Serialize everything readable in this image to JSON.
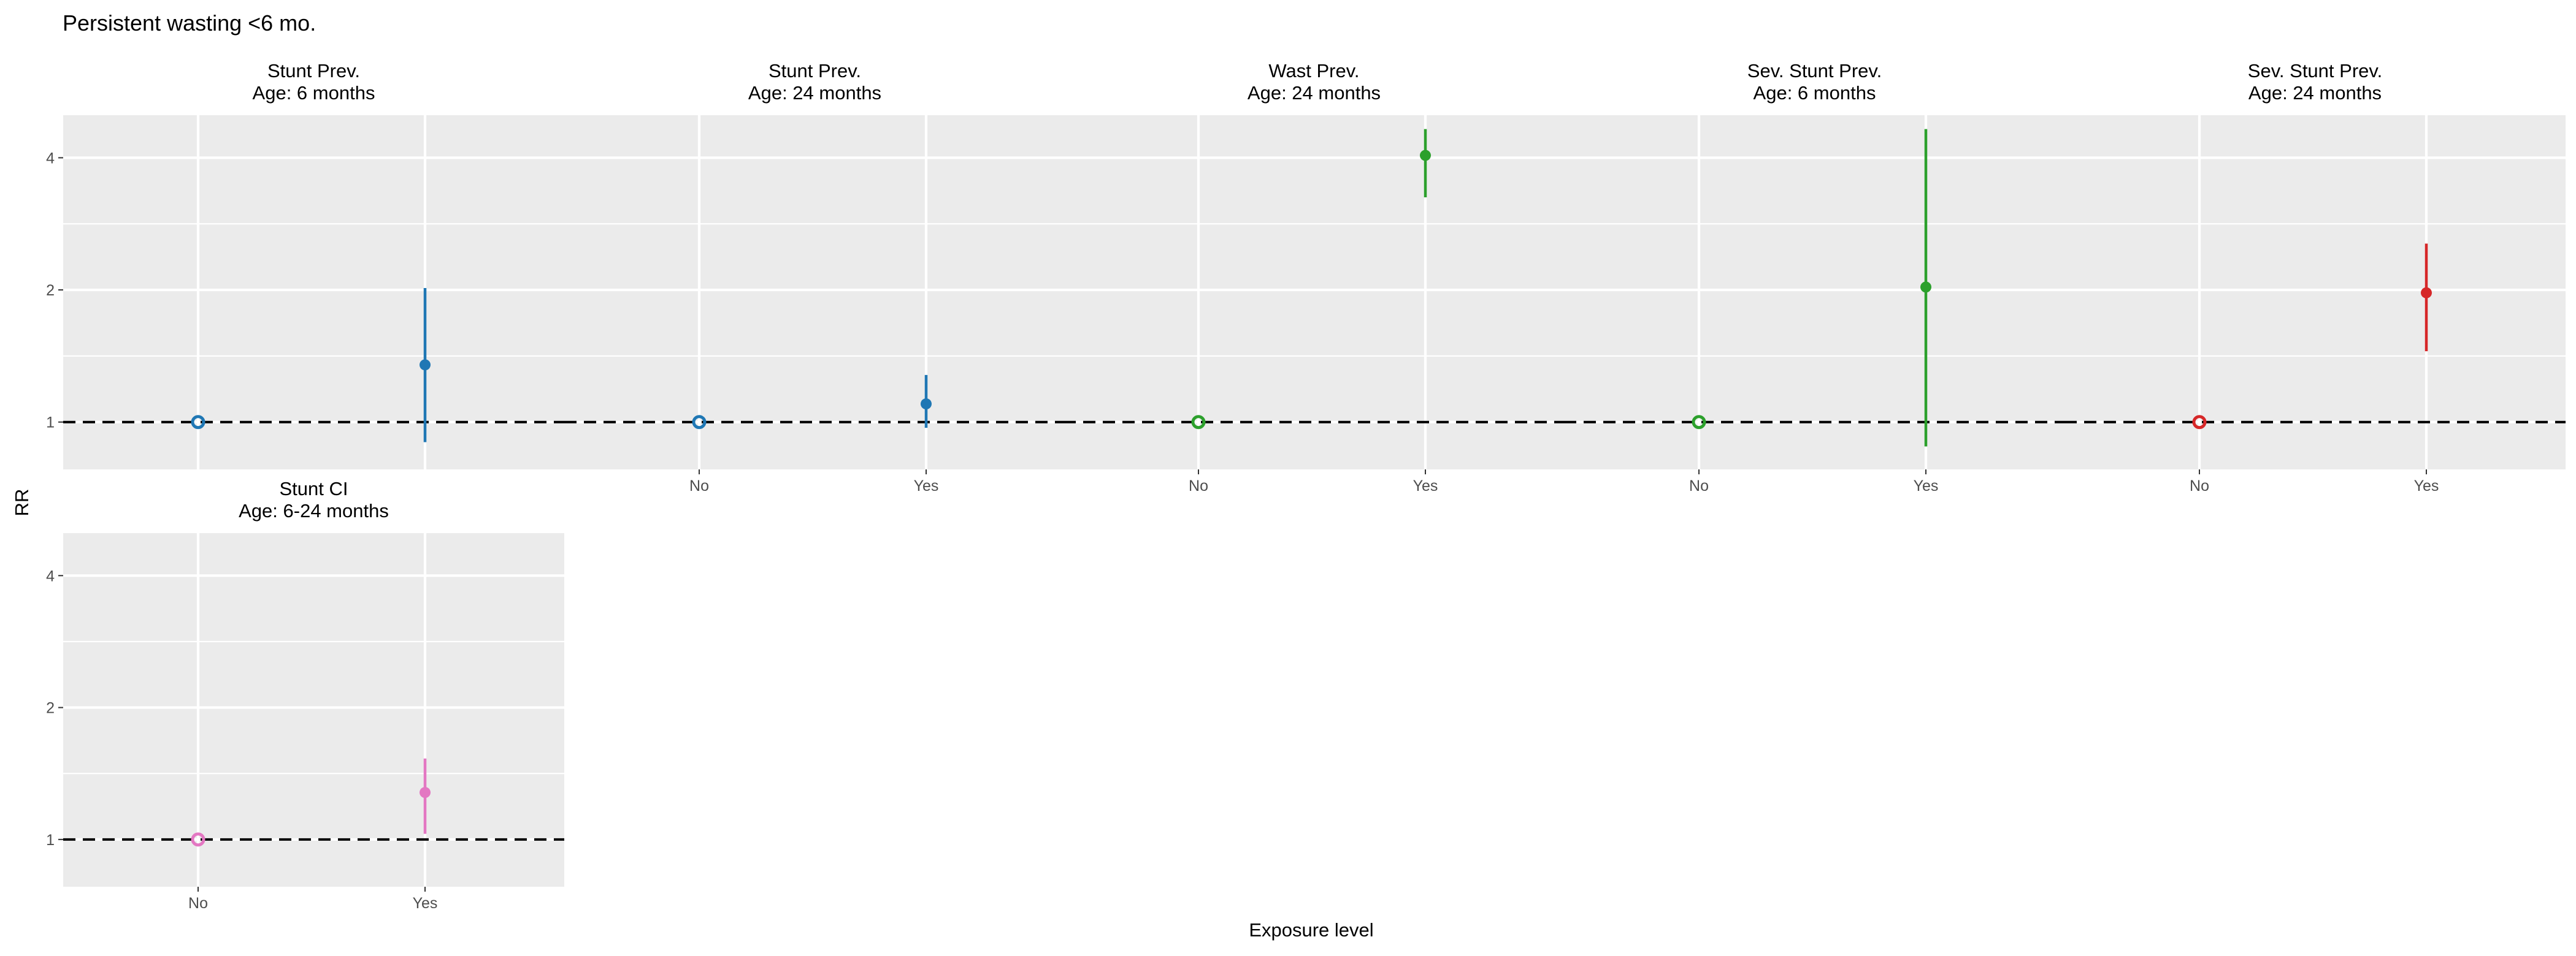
{
  "title": "Persistent wasting  <6 mo.",
  "colors": {
    "panel_bg": "#EBEBEB",
    "grid": "#FFFFFF",
    "refline": "#000000"
  },
  "chart_data": {
    "type": "scatter",
    "subtype": "point-range faceted",
    "xlabel": "Exposure level",
    "ylabel": "RR",
    "y_scale": "log",
    "y_ticks": [
      1,
      2,
      4
    ],
    "ylim": [
      0.78,
      5.0
    ],
    "reference_line": 1,
    "categories": [
      "No",
      "Yes"
    ],
    "panels": [
      {
        "strip": [
          "Stunt Prev.",
          "Age: 6 months"
        ],
        "color": "#1F77B4",
        "show_x_labels": false,
        "points": [
          {
            "x": "No",
            "rr": 1.0,
            "lo": 1.0,
            "hi": 1.0,
            "reference": true
          },
          {
            "x": "Yes",
            "rr": 1.35,
            "lo": 0.9,
            "hi": 2.02
          }
        ]
      },
      {
        "strip": [
          "Stunt Prev.",
          "Age: 24 months"
        ],
        "color": "#1F77B4",
        "show_x_labels": true,
        "points": [
          {
            "x": "No",
            "rr": 1.0,
            "lo": 1.0,
            "hi": 1.0,
            "reference": true
          },
          {
            "x": "Yes",
            "rr": 1.1,
            "lo": 0.97,
            "hi": 1.28
          }
        ]
      },
      {
        "strip": [
          "Wast Prev.",
          "Age: 24 months"
        ],
        "color": "#2CA02C",
        "show_x_labels": true,
        "points": [
          {
            "x": "No",
            "rr": 1.0,
            "lo": 1.0,
            "hi": 1.0,
            "reference": true
          },
          {
            "x": "Yes",
            "rr": 4.05,
            "lo": 3.25,
            "hi": 4.65
          }
        ]
      },
      {
        "strip": [
          "Sev. Stunt Prev.",
          "Age: 6 months"
        ],
        "color": "#2CA02C",
        "show_x_labels": true,
        "points": [
          {
            "x": "No",
            "rr": 1.0,
            "lo": 1.0,
            "hi": 1.0,
            "reference": true
          },
          {
            "x": "Yes",
            "rr": 2.03,
            "lo": 0.88,
            "hi": 4.65
          }
        ]
      },
      {
        "strip": [
          "Sev. Stunt Prev.",
          "Age: 24 months"
        ],
        "color": "#D62728",
        "show_x_labels": true,
        "points": [
          {
            "x": "No",
            "rr": 1.0,
            "lo": 1.0,
            "hi": 1.0,
            "reference": true
          },
          {
            "x": "Yes",
            "rr": 1.97,
            "lo": 1.45,
            "hi": 2.55
          }
        ]
      },
      {
        "strip": [
          "Stunt CI",
          "Age: 6-24 months"
        ],
        "color": "#E377C2",
        "show_x_labels": true,
        "points": [
          {
            "x": "No",
            "rr": 1.0,
            "lo": 1.0,
            "hi": 1.0,
            "reference": true
          },
          {
            "x": "Yes",
            "rr": 1.28,
            "lo": 1.03,
            "hi": 1.53
          }
        ]
      }
    ]
  }
}
